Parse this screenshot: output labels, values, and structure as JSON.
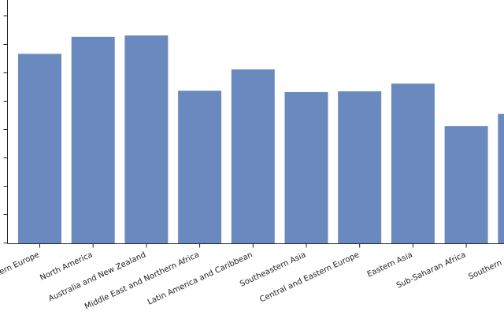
{
  "chart_data": {
    "type": "bar",
    "categories": [
      "Western Europe",
      "North America",
      "Australia and New Zealand",
      "Middle East and Northern Africa",
      "Latin America and Caribbean",
      "Southeastern Asia",
      "Central and Eastern Europe",
      "Eastern Asia",
      "Sub-Saharan Africa",
      "Southern Asia"
    ],
    "values": [
      6.7,
      7.3,
      7.35,
      5.4,
      6.15,
      5.35,
      5.38,
      5.65,
      4.15,
      4.58
    ],
    "title": "",
    "xlabel": "",
    "ylabel": "",
    "ylim": [
      0,
      8.1
    ],
    "grid": false,
    "colors": {
      "bar": "#6a8abf",
      "axis": "#222222"
    }
  }
}
